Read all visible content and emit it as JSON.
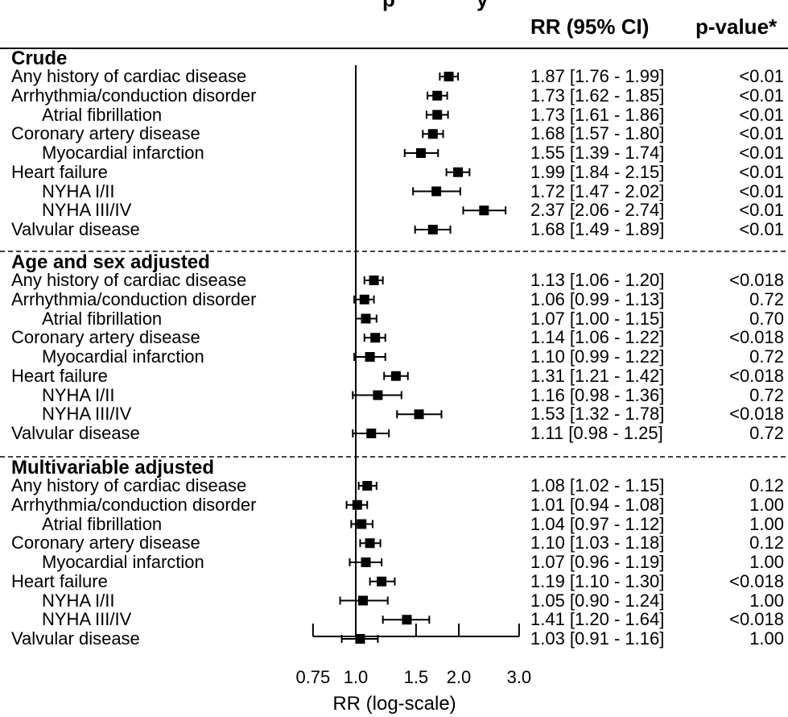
{
  "header": {
    "title_fragment": "p",
    "title_tail": "y",
    "rr_col": "RR (95% CI)",
    "p_col": "p-value*"
  },
  "chart_data": {
    "type": "forest",
    "xlabel": "RR (log-scale)",
    "x_scale": "log",
    "xlim": [
      0.75,
      3.0
    ],
    "x_ticks": [
      0.75,
      1.0,
      1.5,
      2.0,
      3.0
    ],
    "x_tick_labels": [
      "0.75",
      "1.0",
      "1.5",
      "2.0",
      "3.0"
    ],
    "reference_line": 1.0,
    "groups": [
      {
        "name": "Crude",
        "rows": [
          {
            "label": "Any history of cardiac disease",
            "indent": false,
            "rr": 1.87,
            "lo": 1.76,
            "hi": 1.99,
            "ci_text": "1.87 [1.76 - 1.99]",
            "p": "<0.01"
          },
          {
            "label": "Arrhythmia/conduction disorder",
            "indent": false,
            "rr": 1.73,
            "lo": 1.62,
            "hi": 1.85,
            "ci_text": "1.73 [1.62 - 1.85]",
            "p": "<0.01"
          },
          {
            "label": "Atrial fibrillation",
            "indent": true,
            "rr": 1.73,
            "lo": 1.61,
            "hi": 1.86,
            "ci_text": "1.73 [1.61 - 1.86]",
            "p": "<0.01"
          },
          {
            "label": "Coronary artery disease",
            "indent": false,
            "rr": 1.68,
            "lo": 1.57,
            "hi": 1.8,
            "ci_text": "1.68 [1.57 - 1.80]",
            "p": "<0.01"
          },
          {
            "label": "Myocardial infarction",
            "indent": true,
            "rr": 1.55,
            "lo": 1.39,
            "hi": 1.74,
            "ci_text": "1.55 [1.39 - 1.74]",
            "p": "<0.01"
          },
          {
            "label": "Heart failure",
            "indent": false,
            "rr": 1.99,
            "lo": 1.84,
            "hi": 2.15,
            "ci_text": "1.99 [1.84 - 2.15]",
            "p": "<0.01"
          },
          {
            "label": "NYHA I/II",
            "indent": true,
            "rr": 1.72,
            "lo": 1.47,
            "hi": 2.02,
            "ci_text": "1.72 [1.47 - 2.02]",
            "p": "<0.01"
          },
          {
            "label": "NYHA III/IV",
            "indent": true,
            "rr": 2.37,
            "lo": 2.06,
            "hi": 2.74,
            "ci_text": "2.37 [2.06 - 2.74]",
            "p": "<0.01"
          },
          {
            "label": "Valvular disease",
            "indent": false,
            "rr": 1.68,
            "lo": 1.49,
            "hi": 1.89,
            "ci_text": "1.68 [1.49 - 1.89]",
            "p": "<0.01"
          }
        ]
      },
      {
        "name": "Age and sex adjusted",
        "rows": [
          {
            "label": "Any history of cardiac disease",
            "indent": false,
            "rr": 1.13,
            "lo": 1.06,
            "hi": 1.2,
            "ci_text": "1.13 [1.06 - 1.20]",
            "p": "<0.018"
          },
          {
            "label": "Arrhythmia/conduction disorder",
            "indent": false,
            "rr": 1.06,
            "lo": 0.99,
            "hi": 1.13,
            "ci_text": "1.06 [0.99 - 1.13]",
            "p": "0.72"
          },
          {
            "label": "Atrial fibrillation",
            "indent": true,
            "rr": 1.07,
            "lo": 1.0,
            "hi": 1.15,
            "ci_text": "1.07 [1.00 - 1.15]",
            "p": "0.70"
          },
          {
            "label": "Coronary artery disease",
            "indent": false,
            "rr": 1.14,
            "lo": 1.06,
            "hi": 1.22,
            "ci_text": "1.14 [1.06 - 1.22]",
            "p": "<0.018"
          },
          {
            "label": "Myocardial infarction",
            "indent": true,
            "rr": 1.1,
            "lo": 0.99,
            "hi": 1.22,
            "ci_text": "1.10 [0.99 - 1.22]",
            "p": "0.72"
          },
          {
            "label": "Heart failure",
            "indent": false,
            "rr": 1.31,
            "lo": 1.21,
            "hi": 1.42,
            "ci_text": "1.31 [1.21 - 1.42]",
            "p": "<0.018"
          },
          {
            "label": "NYHA I/II",
            "indent": true,
            "rr": 1.16,
            "lo": 0.98,
            "hi": 1.36,
            "ci_text": "1.16 [0.98 - 1.36]",
            "p": "0.72"
          },
          {
            "label": "NYHA III/IV",
            "indent": true,
            "rr": 1.53,
            "lo": 1.32,
            "hi": 1.78,
            "ci_text": "1.53 [1.32 - 1.78]",
            "p": "<0.018"
          },
          {
            "label": "Valvular disease",
            "indent": false,
            "rr": 1.11,
            "lo": 0.98,
            "hi": 1.25,
            "ci_text": "1.11 [0.98 - 1.25]",
            "p": "0.72"
          }
        ]
      },
      {
        "name": "Multivariable adjusted",
        "rows": [
          {
            "label": "Any history of cardiac disease",
            "indent": false,
            "rr": 1.08,
            "lo": 1.02,
            "hi": 1.15,
            "ci_text": "1.08 [1.02 - 1.15]",
            "p": "0.12"
          },
          {
            "label": "Arrhythmia/conduction disorder",
            "indent": false,
            "rr": 1.01,
            "lo": 0.94,
            "hi": 1.08,
            "ci_text": "1.01 [0.94 - 1.08]",
            "p": "1.00"
          },
          {
            "label": "Atrial fibrillation",
            "indent": true,
            "rr": 1.04,
            "lo": 0.97,
            "hi": 1.12,
            "ci_text": "1.04 [0.97 - 1.12]",
            "p": "1.00"
          },
          {
            "label": "Coronary artery disease",
            "indent": false,
            "rr": 1.1,
            "lo": 1.03,
            "hi": 1.18,
            "ci_text": "1.10 [1.03 - 1.18]",
            "p": "0.12"
          },
          {
            "label": "Myocardial infarction",
            "indent": true,
            "rr": 1.07,
            "lo": 0.96,
            "hi": 1.19,
            "ci_text": "1.07 [0.96 - 1.19]",
            "p": "1.00"
          },
          {
            "label": "Heart failure",
            "indent": false,
            "rr": 1.19,
            "lo": 1.1,
            "hi": 1.3,
            "ci_text": "1.19 [1.10 - 1.30]",
            "p": "<0.018"
          },
          {
            "label": "NYHA I/II",
            "indent": true,
            "rr": 1.05,
            "lo": 0.9,
            "hi": 1.24,
            "ci_text": "1.05 [0.90 - 1.24]",
            "p": "1.00"
          },
          {
            "label": "NYHA III/IV",
            "indent": true,
            "rr": 1.41,
            "lo": 1.2,
            "hi": 1.64,
            "ci_text": "1.41 [1.20 - 1.64]",
            "p": "<0.018"
          },
          {
            "label": "Valvular disease",
            "indent": false,
            "rr": 1.03,
            "lo": 0.91,
            "hi": 1.16,
            "ci_text": "1.03 [0.91 - 1.16]",
            "p": "1.00"
          }
        ]
      }
    ]
  }
}
